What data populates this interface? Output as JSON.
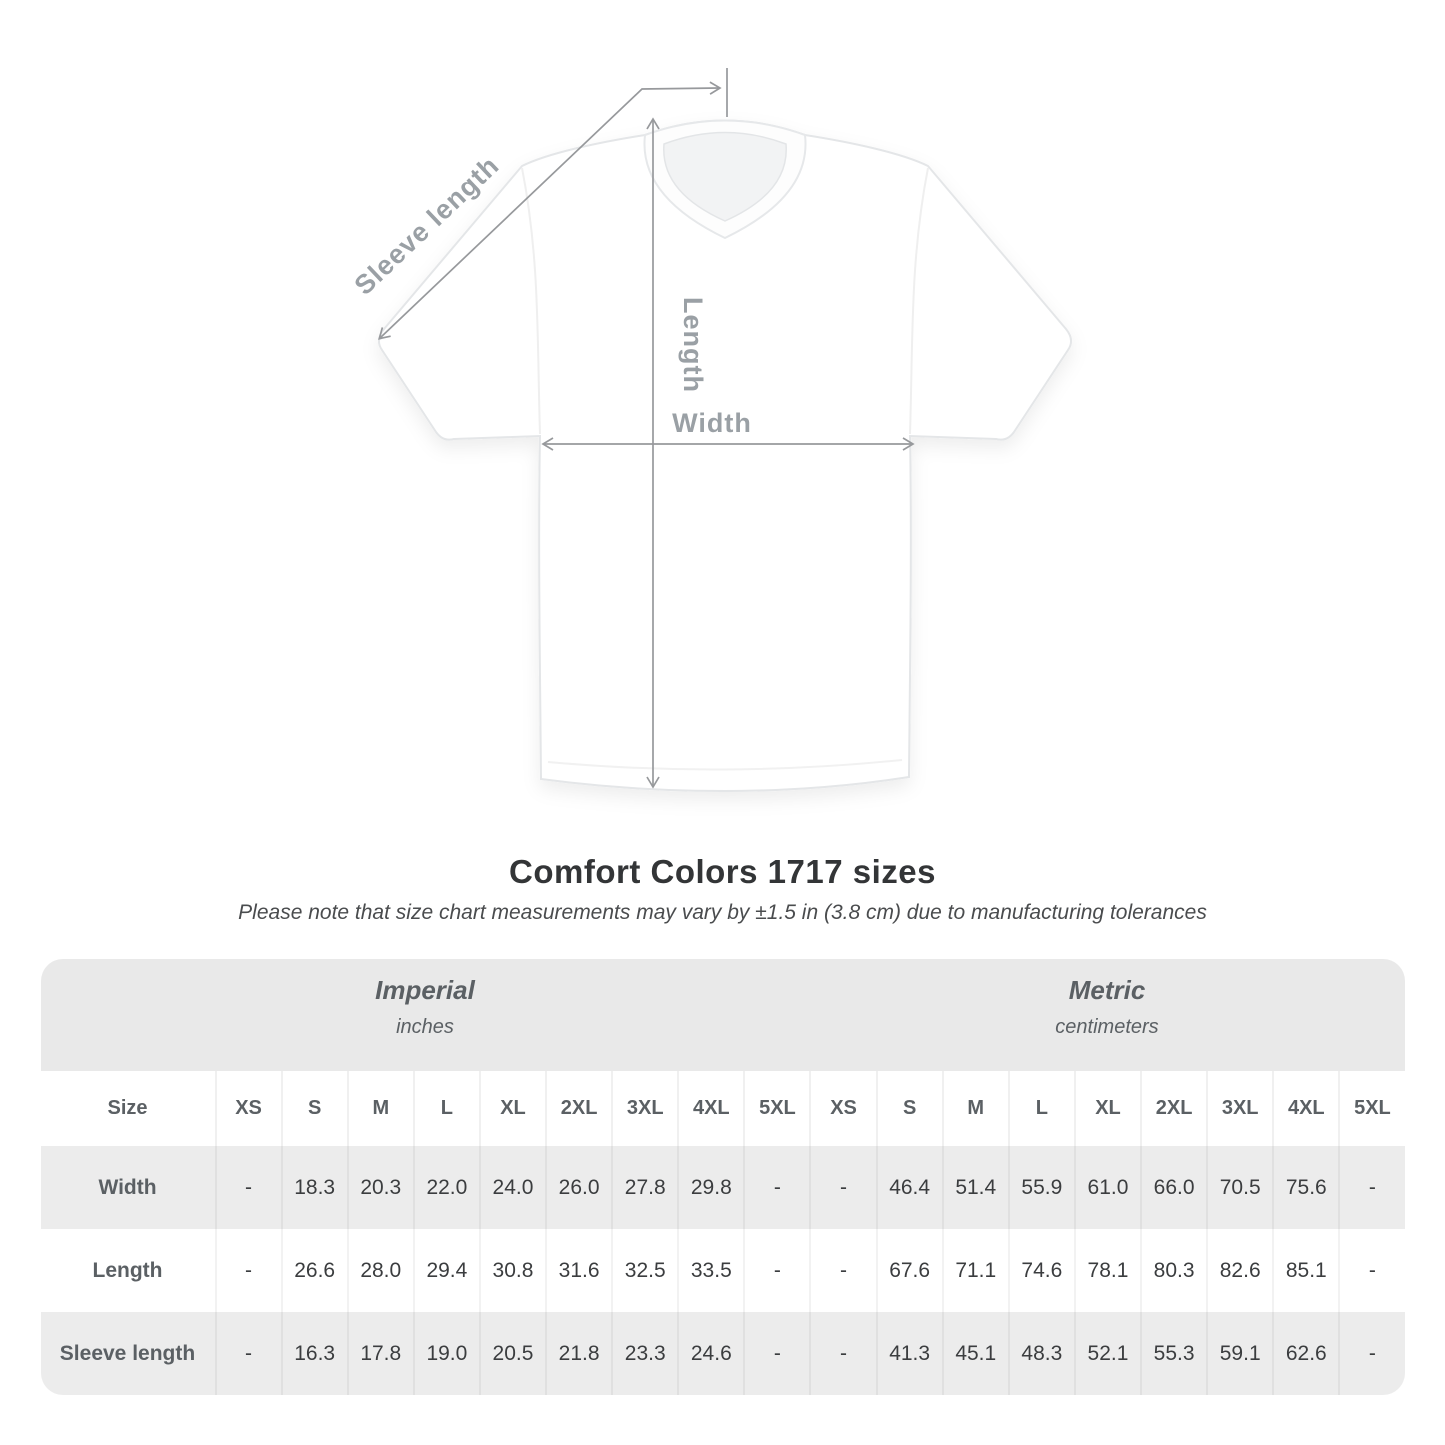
{
  "diagram": {
    "labels": {
      "sleeve": "Sleeve length",
      "length": "Length",
      "width": "Width"
    },
    "annotation_color": "#97999c",
    "label_color": "#9aa0a5"
  },
  "title": "Comfort Colors 1717 sizes",
  "subtitle": "Please note that size chart measurements may vary by ±1.5 in (3.8 cm) due to manufacturing tolerances",
  "chart_data": {
    "type": "table",
    "title": "Comfort Colors 1717 sizes",
    "subtitle": "Please note that size chart measurements may vary by ±1.5 in (3.8 cm) due to manufacturing tolerances",
    "unit_groups": [
      {
        "label": "Imperial",
        "sublabel": "inches"
      },
      {
        "label": "Metric",
        "sublabel": "centimeters"
      }
    ],
    "size_header": "Size",
    "sizes": [
      "XS",
      "S",
      "M",
      "L",
      "XL",
      "2XL",
      "3XL",
      "4XL",
      "5XL"
    ],
    "rows": [
      {
        "label": "Width",
        "imperial": [
          "-",
          "18.3",
          "20.3",
          "22.0",
          "24.0",
          "26.0",
          "27.8",
          "29.8",
          "-"
        ],
        "metric": [
          "-",
          "46.4",
          "51.4",
          "55.9",
          "61.0",
          "66.0",
          "70.5",
          "75.6",
          "-"
        ]
      },
      {
        "label": "Length",
        "imperial": [
          "-",
          "26.6",
          "28.0",
          "29.4",
          "30.8",
          "31.6",
          "32.5",
          "33.5",
          "-"
        ],
        "metric": [
          "-",
          "67.6",
          "71.1",
          "74.6",
          "78.1",
          "80.3",
          "82.6",
          "85.1",
          "-"
        ]
      },
      {
        "label": "Sleeve length",
        "imperial": [
          "-",
          "16.3",
          "17.8",
          "19.0",
          "20.5",
          "21.8",
          "23.3",
          "24.6",
          "-"
        ],
        "metric": [
          "-",
          "41.3",
          "45.1",
          "48.3",
          "52.1",
          "55.3",
          "59.1",
          "62.6",
          "-"
        ]
      }
    ],
    "table_colors": {
      "band_bg": "#e9e9e9",
      "alt_row_bg": "#ececec",
      "header_text": "#5b6064",
      "value_text": "#3b3d3f"
    }
  }
}
